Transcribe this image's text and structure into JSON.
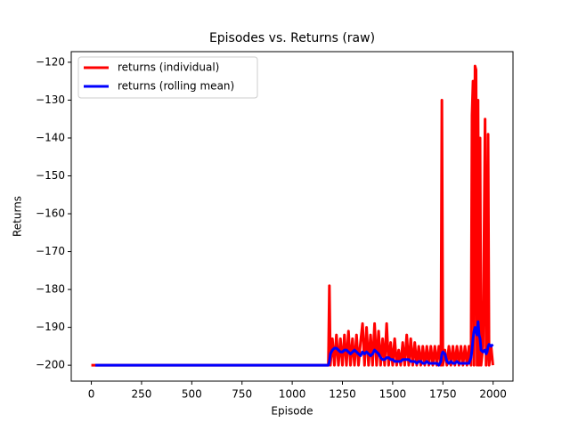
{
  "chart_data": {
    "type": "line",
    "title": "Episodes vs. Returns (raw)",
    "xlabel": "Episode",
    "ylabel": "Returns",
    "x": [
      0,
      20,
      1180,
      1185,
      1190,
      1200,
      1210,
      1220,
      1230,
      1240,
      1250,
      1260,
      1270,
      1280,
      1290,
      1300,
      1310,
      1320,
      1330,
      1340,
      1350,
      1360,
      1370,
      1380,
      1390,
      1400,
      1410,
      1420,
      1430,
      1440,
      1450,
      1460,
      1470,
      1480,
      1490,
      1500,
      1510,
      1520,
      1530,
      1540,
      1550,
      1560,
      1570,
      1580,
      1590,
      1600,
      1610,
      1620,
      1630,
      1640,
      1650,
      1660,
      1670,
      1680,
      1690,
      1700,
      1710,
      1720,
      1730,
      1740,
      1745,
      1750,
      1760,
      1770,
      1780,
      1790,
      1800,
      1810,
      1820,
      1830,
      1840,
      1850,
      1860,
      1870,
      1880,
      1890,
      1895,
      1900,
      1905,
      1910,
      1915,
      1920,
      1925,
      1930,
      1935,
      1940,
      1950,
      1960,
      1965,
      1970,
      1975,
      1980,
      1990,
      1999
    ],
    "series": [
      {
        "name": "returns (individual)",
        "color": "#ff0000",
        "values": [
          -200,
          -200,
          -200,
          -179,
          -200,
          -193,
          -200,
          -192,
          -200,
          -193,
          -200,
          -192,
          -200,
          -191,
          -200,
          -193,
          -200,
          -192,
          -200,
          -194,
          -189,
          -200,
          -190,
          -200,
          -192,
          -200,
          -189,
          -200,
          -191,
          -200,
          -193,
          -200,
          -189,
          -200,
          -194,
          -200,
          -193,
          -200,
          -196,
          -200,
          -194,
          -200,
          -192,
          -200,
          -193,
          -200,
          -194,
          -200,
          -195,
          -200,
          -195,
          -200,
          -195,
          -200,
          -195,
          -200,
          -195,
          -200,
          -195,
          -200,
          -130,
          -200,
          -196,
          -200,
          -195,
          -200,
          -195,
          -200,
          -195,
          -200,
          -195,
          -200,
          -195,
          -200,
          -195,
          -200,
          -134,
          -125,
          -200,
          -121,
          -122,
          -200,
          -130,
          -200,
          -140,
          -200,
          -195,
          -135,
          -200,
          -195,
          -139,
          -200,
          -195,
          -200
        ]
      },
      {
        "name": "returns (rolling mean)",
        "color": "#0000ff",
        "values": [
          null,
          -200,
          -200,
          -199,
          -197,
          -196,
          -195.5,
          -195.5,
          -196,
          -196.5,
          -196.5,
          -196,
          -196,
          -196.5,
          -197,
          -196.5,
          -196,
          -196.5,
          -197,
          -197.5,
          -196.5,
          -197,
          -196.5,
          -197,
          -197.5,
          -197,
          -196,
          -196.5,
          -197,
          -198,
          -198.5,
          -198.5,
          -198,
          -198,
          -198.5,
          -198.5,
          -199,
          -199,
          -199,
          -199,
          -198.5,
          -198.5,
          -198.5,
          -198.5,
          -199,
          -199,
          -199,
          -199.5,
          -199,
          -199,
          -199.5,
          -199.5,
          -199,
          -199.5,
          -199.5,
          -199.5,
          -199.5,
          -199.5,
          -200,
          -199,
          -197,
          -196.5,
          -197,
          -199,
          -199.5,
          -199,
          -199.5,
          -199.5,
          -199,
          -199.5,
          -199.5,
          -199.5,
          -199.5,
          -199.5,
          -199.5,
          -198,
          -196,
          -193,
          -191,
          -190,
          -191,
          -192,
          -188.5,
          -192,
          -193,
          -196,
          -196.5,
          -196,
          -197,
          -196.5,
          -195,
          -194.5,
          -195,
          -194.5
        ]
      }
    ],
    "xlim": [
      -100,
      2099
    ],
    "ylim": [
      -204.2,
      -117.2
    ],
    "xticks": [
      0,
      250,
      500,
      750,
      1000,
      1250,
      1500,
      1750,
      2000
    ],
    "yticks": [
      {
        "value": -200,
        "label": "−200"
      },
      {
        "value": -190,
        "label": "−190"
      },
      {
        "value": -180,
        "label": "−180"
      },
      {
        "value": -170,
        "label": "−170"
      },
      {
        "value": -160,
        "label": "−160"
      },
      {
        "value": -150,
        "label": "−150"
      },
      {
        "value": -140,
        "label": "−140"
      },
      {
        "value": -130,
        "label": "−130"
      },
      {
        "value": -120,
        "label": "−120"
      }
    ],
    "legend": "upper left"
  }
}
